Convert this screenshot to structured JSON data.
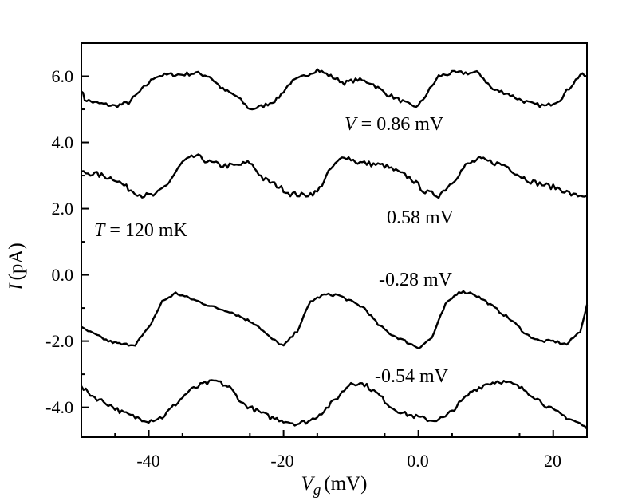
{
  "chart_data": {
    "type": "line",
    "title": "",
    "xlabel": {
      "symbol": "V",
      "subscript": "g",
      "unit": "(mV)"
    },
    "ylabel": {
      "symbol": "I",
      "unit": "(pA)"
    },
    "xlim": [
      -50,
      25
    ],
    "ylim": [
      -4.9,
      7.0
    ],
    "x_ticks": [
      -40,
      -20,
      0,
      20
    ],
    "x_tick_labels": [
      "-40",
      "-20",
      "0.0",
      "20"
    ],
    "y_ticks": [
      6,
      4,
      2,
      0,
      -2,
      -4
    ],
    "y_tick_labels": [
      "6.0",
      "4.0",
      "2.0",
      "0.0",
      "-2.0",
      "-4.0"
    ],
    "grid": false,
    "annotations": {
      "temperature": {
        "symbol": "T",
        "text": " = 120 mK"
      },
      "bias_first": {
        "symbol": "V",
        "text": " = 0.86 mV"
      },
      "bias_labels": [
        "0.58 mV",
        "-0.28 mV",
        "-0.54 mV"
      ]
    },
    "series": [
      {
        "name": "0.86 mV",
        "noise": 0.12,
        "x": [
          -50,
          -49.5,
          -48,
          -45,
          -43,
          -41,
          -39,
          -37,
          -35,
          -33,
          -31,
          -29,
          -27,
          -25,
          -23,
          -21,
          -19,
          -17,
          -15,
          -13,
          -11,
          -9,
          -7,
          -5,
          -3,
          -1,
          0,
          1,
          3,
          5,
          7,
          9,
          11,
          13,
          15,
          17,
          19,
          21,
          23,
          24,
          25
        ],
        "values": [
          5.6,
          5.3,
          5.2,
          5.1,
          5.2,
          5.6,
          6.0,
          6.05,
          6.05,
          6.1,
          6.0,
          5.6,
          5.4,
          5.0,
          5.1,
          5.3,
          5.8,
          6.0,
          6.2,
          6.0,
          5.8,
          5.9,
          5.8,
          5.5,
          5.3,
          5.1,
          5.1,
          5.4,
          6.0,
          6.1,
          6.1,
          6.1,
          5.6,
          5.5,
          5.3,
          5.15,
          5.1,
          5.3,
          5.8,
          6.05,
          6.0
        ]
      },
      {
        "name": "0.58 mV",
        "noise": 0.16,
        "x": [
          -50,
          -48,
          -45,
          -43,
          -41,
          -39,
          -37,
          -35,
          -33,
          -31,
          -29,
          -27,
          -25,
          -23,
          -21,
          -19,
          -17,
          -15,
          -13,
          -11,
          -9,
          -7,
          -5,
          -3,
          -1,
          1,
          3,
          5,
          7,
          9,
          11,
          13,
          15,
          17,
          19,
          21,
          23,
          25
        ],
        "values": [
          3.1,
          3.05,
          2.9,
          2.6,
          2.4,
          2.4,
          2.8,
          3.4,
          3.6,
          3.4,
          3.3,
          3.3,
          3.4,
          2.9,
          2.7,
          2.45,
          2.4,
          2.5,
          3.2,
          3.6,
          3.4,
          3.35,
          3.3,
          3.1,
          2.9,
          2.5,
          2.4,
          2.8,
          3.3,
          3.5,
          3.4,
          3.3,
          3.0,
          2.8,
          2.7,
          2.6,
          2.4,
          2.4
        ]
      },
      {
        "name": "-0.28 mV",
        "noise": 0.08,
        "x": [
          -50,
          -48,
          -46,
          -44,
          -42,
          -40,
          -38,
          -36,
          -34,
          -32,
          -30,
          -28,
          -26,
          -24,
          -22,
          -20,
          -18,
          -16,
          -14,
          -12,
          -10,
          -8,
          -6,
          -4,
          -2,
          0,
          2,
          4,
          6,
          8,
          10,
          12,
          14,
          16,
          18,
          20,
          22,
          24,
          25
        ],
        "values": [
          -1.6,
          -1.8,
          -2.0,
          -2.1,
          -2.1,
          -1.6,
          -0.8,
          -0.55,
          -0.7,
          -0.85,
          -1.0,
          -1.1,
          -1.3,
          -1.5,
          -1.9,
          -2.15,
          -1.7,
          -0.8,
          -0.6,
          -0.6,
          -0.8,
          -1.0,
          -1.5,
          -1.8,
          -2.0,
          -2.2,
          -1.9,
          -0.9,
          -0.5,
          -0.55,
          -0.8,
          -1.1,
          -1.4,
          -1.8,
          -2.0,
          -2.0,
          -2.1,
          -1.7,
          -0.9
        ]
      },
      {
        "name": "-0.54 mV",
        "noise": 0.14,
        "x": [
          -50,
          -48,
          -46,
          -44,
          -42,
          -40,
          -38,
          -36,
          -34,
          -32,
          -30,
          -28,
          -26,
          -24,
          -22,
          -20,
          -18,
          -16,
          -14,
          -12,
          -10,
          -8,
          -6,
          -4,
          -2,
          0,
          2,
          4,
          6,
          8,
          10,
          12,
          14,
          16,
          18,
          20,
          22,
          24,
          25
        ],
        "values": [
          -3.4,
          -3.7,
          -3.9,
          -4.15,
          -4.3,
          -4.4,
          -4.3,
          -3.9,
          -3.5,
          -3.3,
          -3.2,
          -3.4,
          -3.9,
          -4.1,
          -4.3,
          -4.4,
          -4.5,
          -4.4,
          -4.1,
          -3.7,
          -3.25,
          -3.3,
          -3.6,
          -4.0,
          -4.2,
          -4.3,
          -4.4,
          -4.3,
          -3.9,
          -3.5,
          -3.3,
          -3.2,
          -3.3,
          -3.5,
          -3.8,
          -4.1,
          -4.3,
          -4.5,
          -4.65
        ]
      }
    ]
  }
}
